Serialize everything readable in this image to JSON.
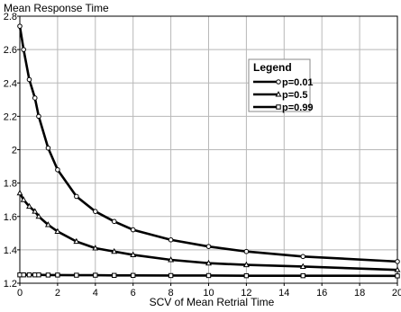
{
  "chart_data": {
    "type": "line",
    "title": "",
    "xlabel": "SCV of Mean Retrial Time",
    "ylabel": "Mean Response Time",
    "xlim": [
      0,
      20
    ],
    "ylim": [
      1.2,
      2.8
    ],
    "xticks": [
      0,
      2,
      4,
      6,
      8,
      10,
      12,
      14,
      16,
      18,
      20
    ],
    "yticks": [
      1.2,
      1.4,
      1.6,
      1.8,
      2,
      2.2,
      2.4,
      2.6,
      2.8
    ],
    "xtick_labels": [
      "0",
      "2",
      "4",
      "6",
      "8",
      "10",
      "12",
      "14",
      "16",
      "18",
      "20"
    ],
    "ytick_labels": [
      "1.2",
      "1.4",
      "1.6",
      "1.8",
      "2",
      "2.2",
      "2.4",
      "2.6",
      "2.8"
    ],
    "grid": true,
    "legend": {
      "title": "Legend",
      "placement": "top-right"
    },
    "series": [
      {
        "name": "p=0.01",
        "marker": "circle",
        "x": [
          0,
          0.2,
          0.5,
          0.8,
          1,
          1.5,
          2,
          3,
          4,
          5,
          6,
          8,
          10,
          12,
          15,
          20
        ],
        "y": [
          2.74,
          2.6,
          2.42,
          2.31,
          2.2,
          2.01,
          1.88,
          1.72,
          1.63,
          1.57,
          1.52,
          1.46,
          1.42,
          1.39,
          1.36,
          1.33
        ]
      },
      {
        "name": "p=0.5",
        "marker": "triangle",
        "x": [
          0,
          0.2,
          0.5,
          0.8,
          1,
          1.5,
          2,
          3,
          4,
          5,
          6,
          8,
          10,
          12,
          15,
          20
        ],
        "y": [
          1.74,
          1.7,
          1.66,
          1.63,
          1.6,
          1.55,
          1.51,
          1.45,
          1.41,
          1.39,
          1.37,
          1.34,
          1.32,
          1.31,
          1.3,
          1.28
        ]
      },
      {
        "name": "p=0.99",
        "marker": "square",
        "x": [
          0,
          0.2,
          0.5,
          0.8,
          1,
          1.5,
          2,
          3,
          4,
          5,
          6,
          8,
          10,
          12,
          15,
          20
        ],
        "y": [
          1.25,
          1.25,
          1.25,
          1.25,
          1.25,
          1.249,
          1.249,
          1.248,
          1.248,
          1.247,
          1.247,
          1.246,
          1.246,
          1.245,
          1.245,
          1.244
        ]
      }
    ]
  }
}
